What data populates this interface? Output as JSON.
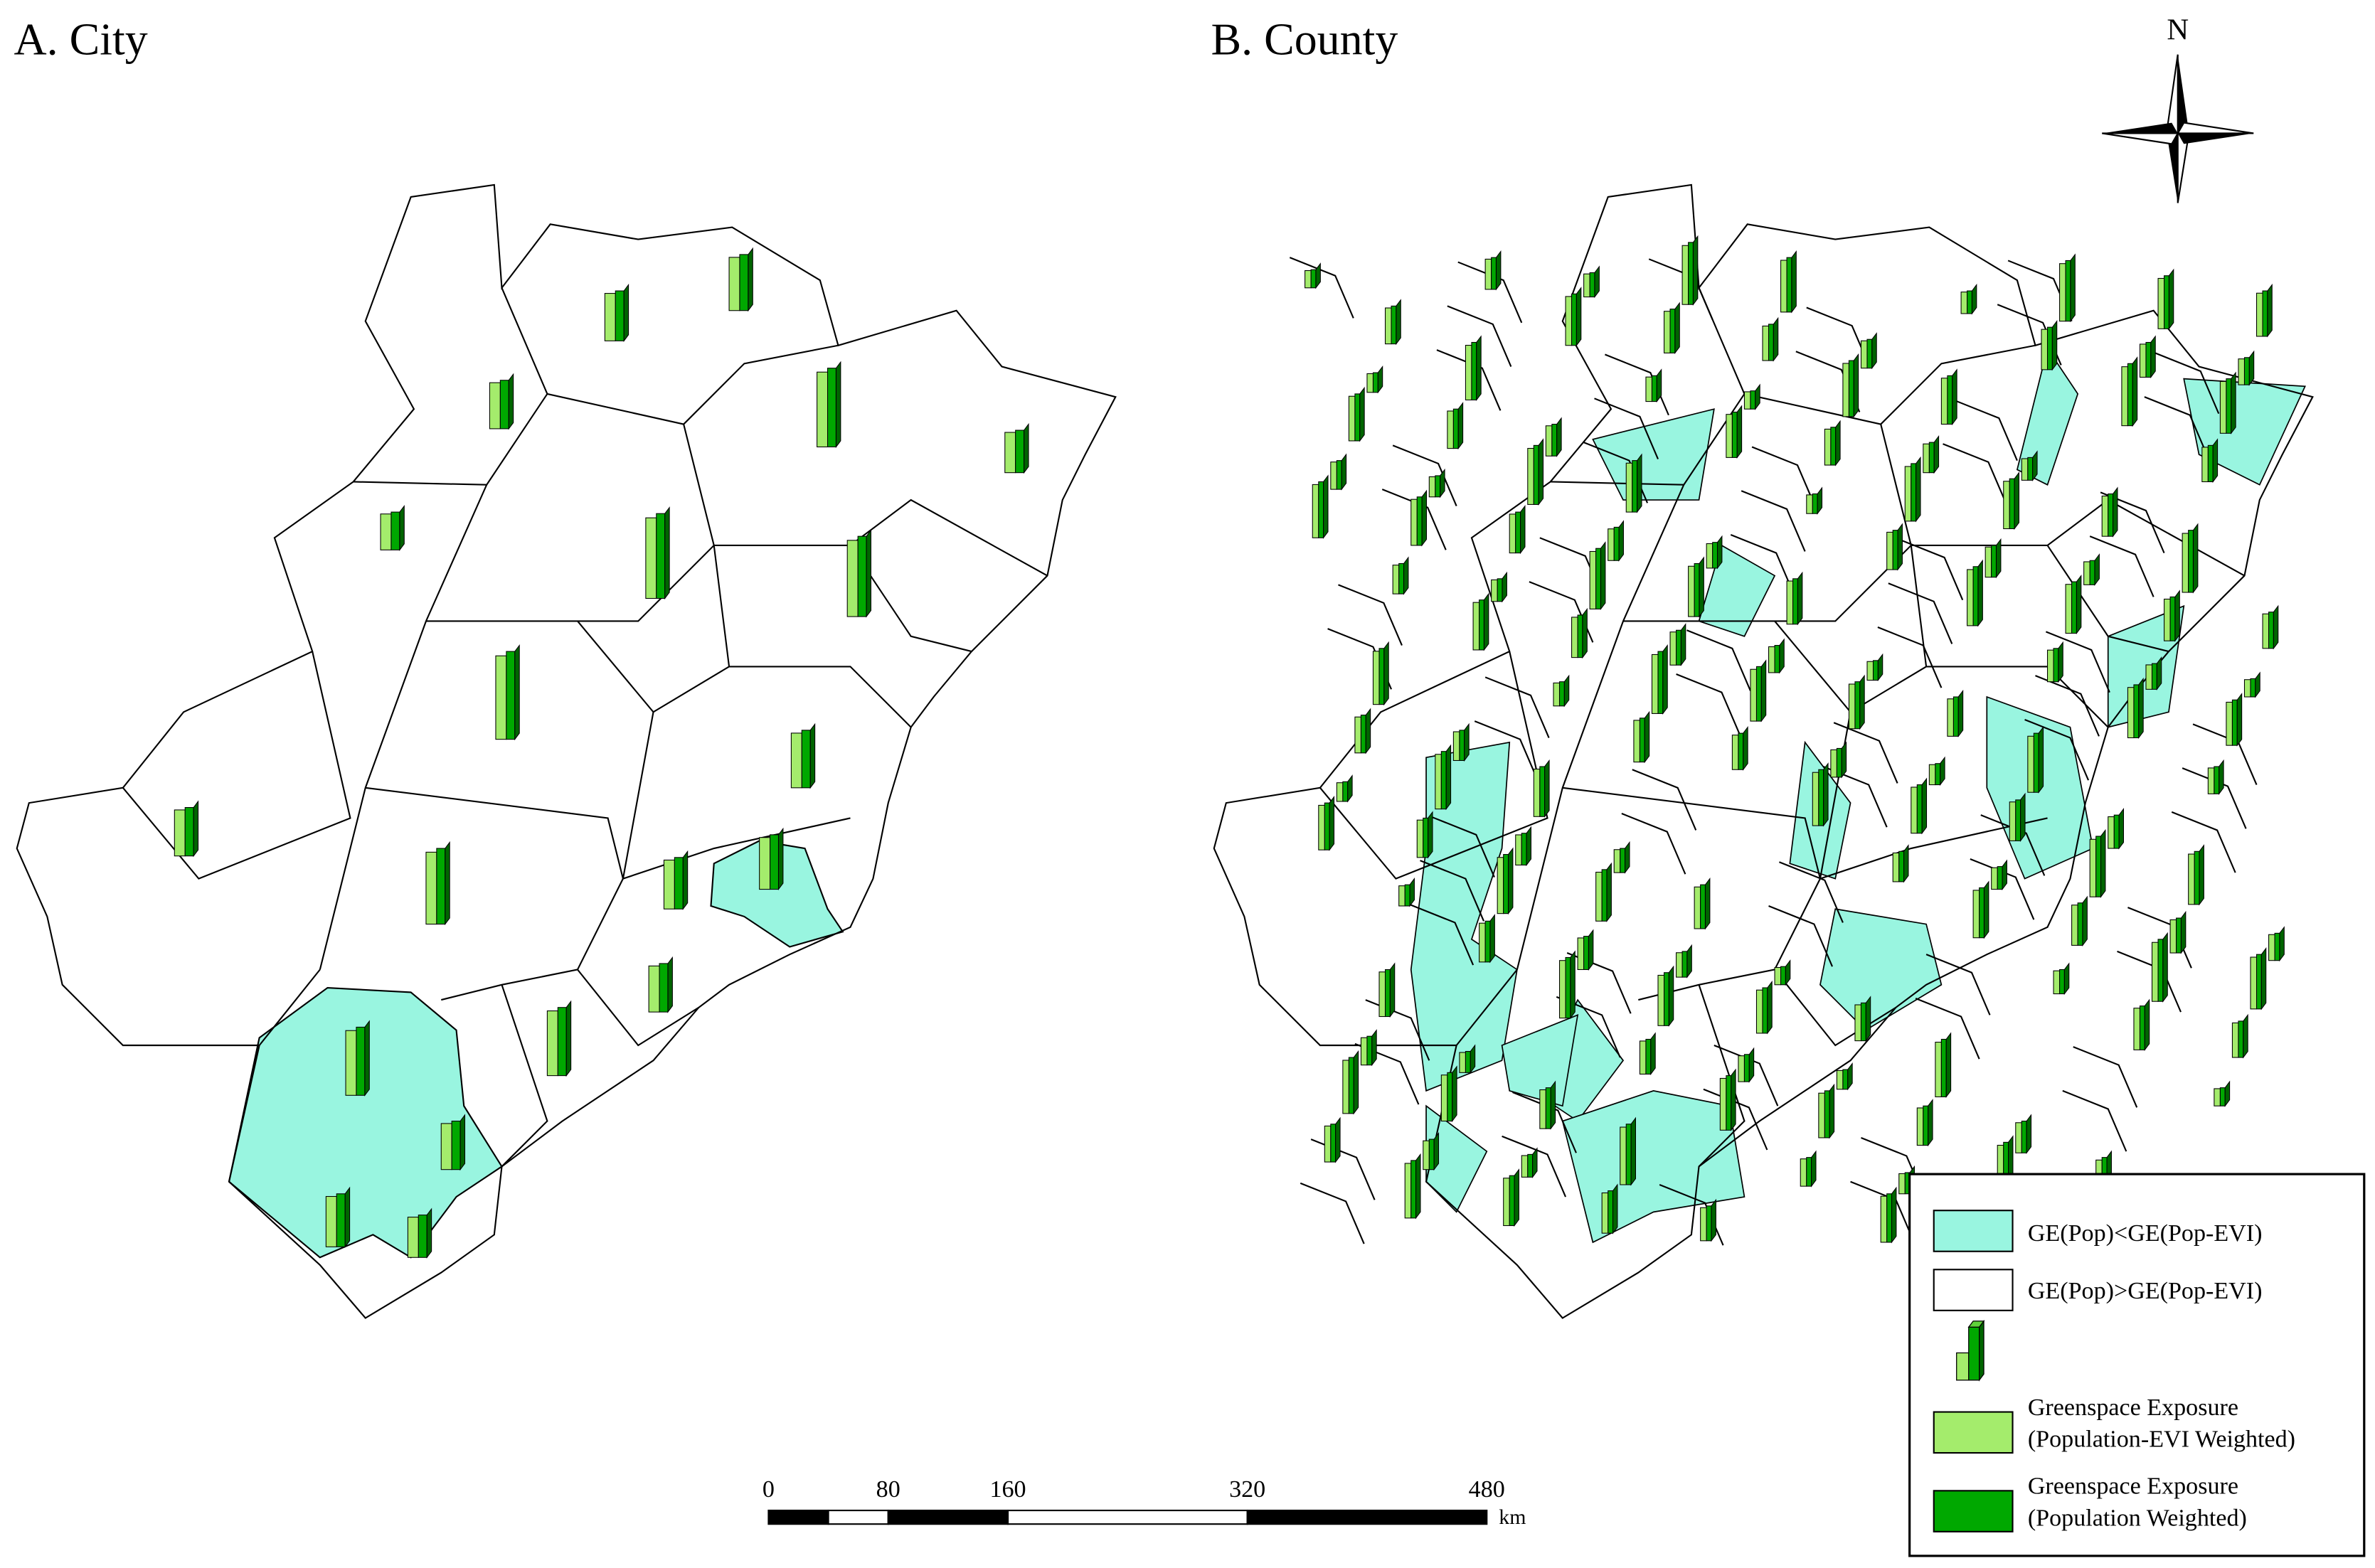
{
  "panels": [
    {
      "title": "A. City"
    },
    {
      "title": "B. County"
    }
  ],
  "north_arrow": {
    "label": "N"
  },
  "scale_bar": {
    "ticks": [
      0,
      80,
      160,
      320,
      480
    ],
    "unit": "km"
  },
  "legend": {
    "items": [
      {
        "label": "GE(Pop)<GE(Pop-EVI)",
        "color": "#99f5e0"
      },
      {
        "label": "GE(Pop)>GE(Pop-EVI)",
        "color": "#ffffff"
      },
      {
        "line1": "Greenspace Exposure",
        "line2": "(Population-EVI Weighted)",
        "color": "#a4ec6c"
      },
      {
        "line1": "Greenspace Exposure",
        "line2": "(Population Weighted)",
        "color": "#00a800"
      }
    ]
  }
}
